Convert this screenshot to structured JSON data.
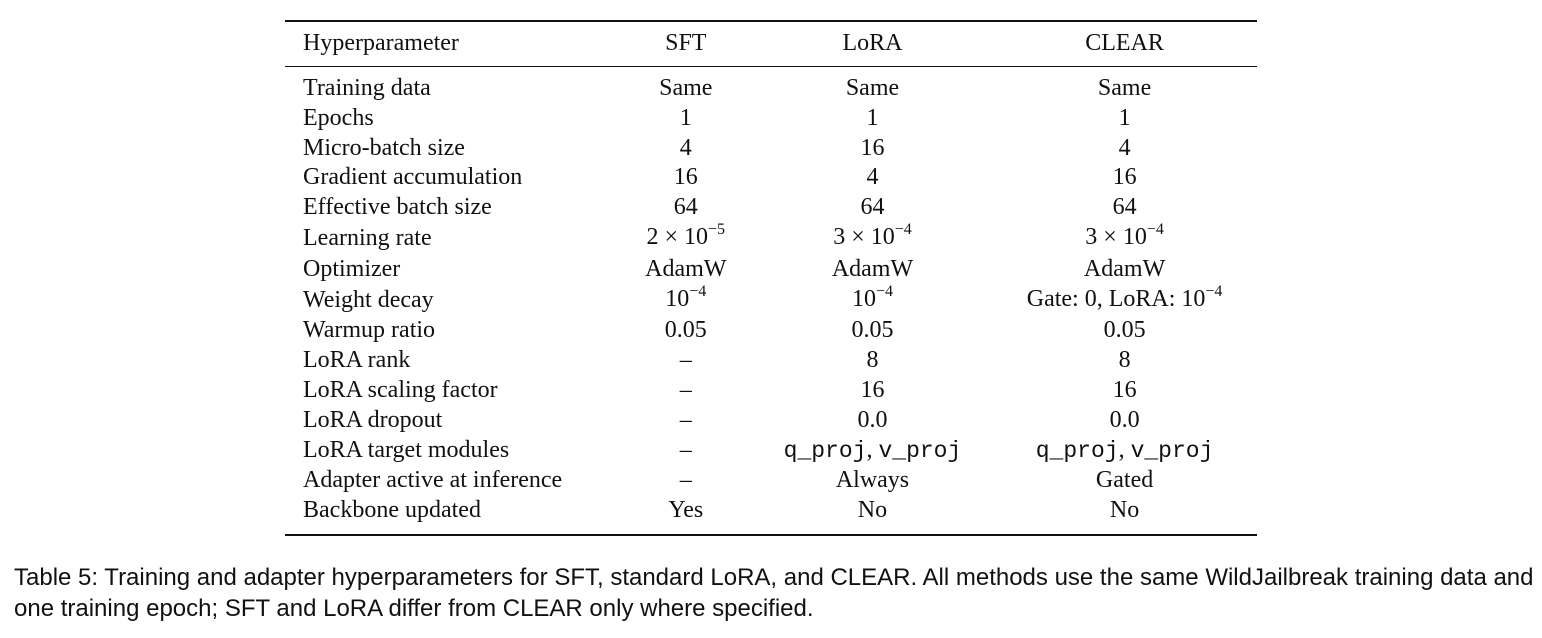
{
  "table": {
    "headers": [
      "Hyperparameter",
      "SFT",
      "LoRA",
      "CLEAR"
    ],
    "rows": [
      {
        "name": "training-data-row",
        "label": "Training data",
        "sft": "Same",
        "lora": "Same",
        "clear": "Same"
      },
      {
        "name": "epochs-row",
        "label": "Epochs",
        "sft": "1",
        "lora": "1",
        "clear": "1"
      },
      {
        "name": "micro-batch-size-row",
        "label": "Micro-batch size",
        "sft": "4",
        "lora": "16",
        "clear": "4"
      },
      {
        "name": "gradient-accumulation-row",
        "label": "Gradient accumulation",
        "sft": "16",
        "lora": "4",
        "clear": "16"
      },
      {
        "name": "effective-batch-size-row",
        "label": "Effective batch size",
        "sft": "64",
        "lora": "64",
        "clear": "64"
      },
      {
        "name": "learning-rate-row",
        "label": "Learning rate",
        "sft": {
          "base": "2 × 10",
          "exp": "−5"
        },
        "lora": {
          "base": "3 × 10",
          "exp": "−4"
        },
        "clear": {
          "base": "3 × 10",
          "exp": "−4"
        }
      },
      {
        "name": "optimizer-row",
        "label": "Optimizer",
        "sft": "AdamW",
        "lora": "AdamW",
        "clear": "AdamW"
      },
      {
        "name": "weight-decay-row",
        "label": "Weight decay",
        "sft": {
          "base": "10",
          "exp": "−4"
        },
        "lora": {
          "base": "10",
          "exp": "−4"
        },
        "clear": {
          "base": "Gate: 0, LoRA: 10",
          "exp": "−4"
        }
      },
      {
        "name": "warmup-ratio-row",
        "label": "Warmup ratio",
        "sft": "0.05",
        "lora": "0.05",
        "clear": "0.05"
      },
      {
        "name": "lora-rank-row",
        "label": "LoRA rank",
        "sft": "–",
        "lora": "8",
        "clear": "8"
      },
      {
        "name": "lora-scaling-factor-row",
        "label": "LoRA scaling factor",
        "sft": "–",
        "lora": "16",
        "clear": "16"
      },
      {
        "name": "lora-dropout-row",
        "label": "LoRA dropout",
        "sft": "–",
        "lora": "0.0",
        "clear": "0.0"
      },
      {
        "name": "lora-target-modules-row",
        "label": "LoRA target modules",
        "sft": "–",
        "lora": {
          "mono": [
            "q_proj",
            "v_proj"
          ]
        },
        "clear": {
          "mono": [
            "q_proj",
            "v_proj"
          ]
        }
      },
      {
        "name": "adapter-active-row",
        "label": "Adapter active at inference",
        "sft": "–",
        "lora": "Always",
        "clear": "Gated"
      },
      {
        "name": "backbone-updated-row",
        "label": "Backbone updated",
        "sft": "Yes",
        "lora": "No",
        "clear": "No"
      }
    ]
  },
  "caption": "Table 5: Training and adapter hyperparameters for SFT, standard LoRA, and CLEAR. All methods use the same WildJailbreak training data and one training epoch; SFT and LoRA differ from CLEAR only where specified."
}
